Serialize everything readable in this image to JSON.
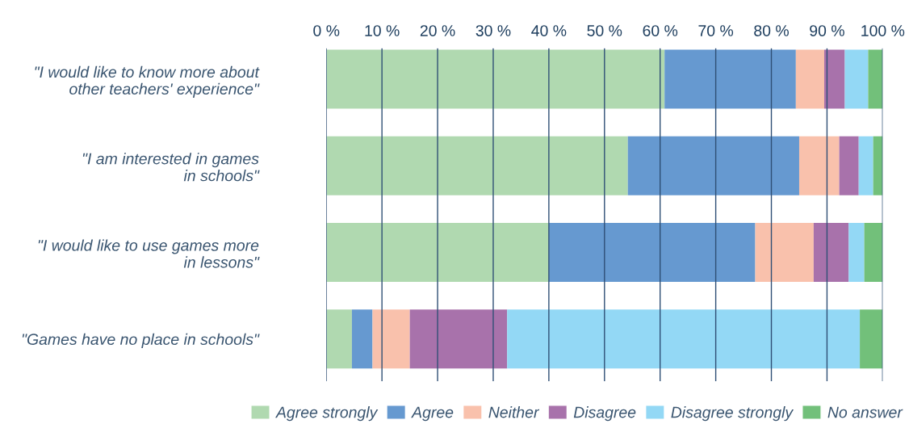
{
  "chart_data": {
    "type": "bar",
    "orientation": "horizontal",
    "stacked": true,
    "categories": [
      "\"I would like to know more about\nother teachers' experience\"",
      "\"I am interested in games\nin schools\"",
      "\"I would like to use games more\nin lessons\"",
      "\"Games have no place in schools\""
    ],
    "series": [
      {
        "name": "Agree strongly",
        "color": "#b0d9b0",
        "values": [
          60.8,
          54.2,
          40.0,
          4.6
        ]
      },
      {
        "name": "Agree",
        "color": "#6699d0",
        "values": [
          23.6,
          30.8,
          37.1,
          3.7
        ]
      },
      {
        "name": "Neither",
        "color": "#f9c1ac",
        "values": [
          5.1,
          7.2,
          10.5,
          6.7
        ]
      },
      {
        "name": "Disagree",
        "color": "#a872ab",
        "values": [
          3.7,
          3.5,
          6.3,
          17.5
        ]
      },
      {
        "name": "Disagree strongly",
        "color": "#93d8f5",
        "values": [
          4.2,
          2.6,
          2.8,
          63.4
        ]
      },
      {
        "name": "No answer",
        "color": "#72c07a",
        "values": [
          2.6,
          1.7,
          3.3,
          4.1
        ]
      }
    ],
    "xlim": [
      0,
      100
    ],
    "xticks": [
      {
        "value": 0,
        "label": "0 %"
      },
      {
        "value": 10,
        "label": "10 %"
      },
      {
        "value": 20,
        "label": "20 %"
      },
      {
        "value": 30,
        "label": "30 %"
      },
      {
        "value": 40,
        "label": "40 %"
      },
      {
        "value": 50,
        "label": "50 %"
      },
      {
        "value": 60,
        "label": "60 %"
      },
      {
        "value": 70,
        "label": "70 %"
      },
      {
        "value": 80,
        "label": "80 %"
      },
      {
        "value": 90,
        "label": "90 %"
      },
      {
        "value": 100,
        "label": "100 %"
      }
    ],
    "grid": "x",
    "legend": "bottom"
  }
}
